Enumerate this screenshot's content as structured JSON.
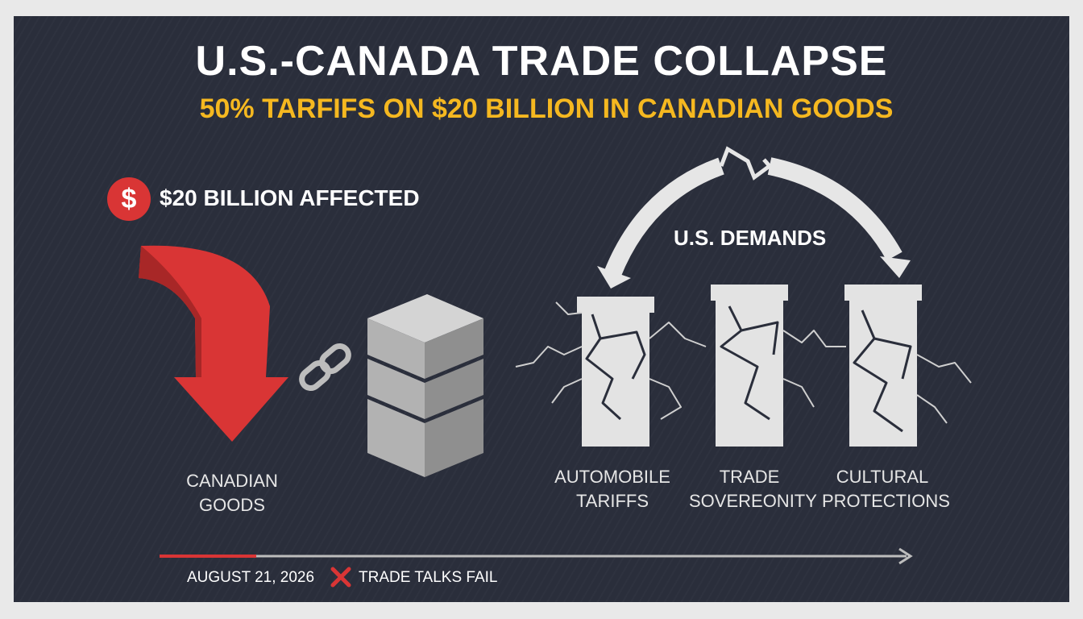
{
  "header": {
    "title": "U.S.-CANADA TRADE COLLAPSE",
    "subtitle": "50% TARFIFS ON $20 BILLION IN CANADIAN GOODS"
  },
  "affected": {
    "icon": "dollar-icon",
    "symbol": "$",
    "text": "$20 BILLION AFFECTED"
  },
  "goods": {
    "label_line1": "CANADIAN",
    "label_line2": "GOODS"
  },
  "demands": {
    "label": "U.S. DEMANDS",
    "pillars": [
      {
        "line1": "AUTOMOBILE",
        "line2": "TARIFFS"
      },
      {
        "line1": "TRADE",
        "line2": "SOVEREONITY"
      },
      {
        "line1": "CULTURAL",
        "line2": "PROTECTIONS"
      }
    ]
  },
  "timeline": {
    "date": "AUGUST 21, 2026",
    "event": "TRADE TALKS FAIL"
  },
  "colors": {
    "background": "#2a2e3b",
    "accent_red": "#d93535",
    "accent_yellow": "#f5b820",
    "pillar": "#e6e6e6"
  }
}
